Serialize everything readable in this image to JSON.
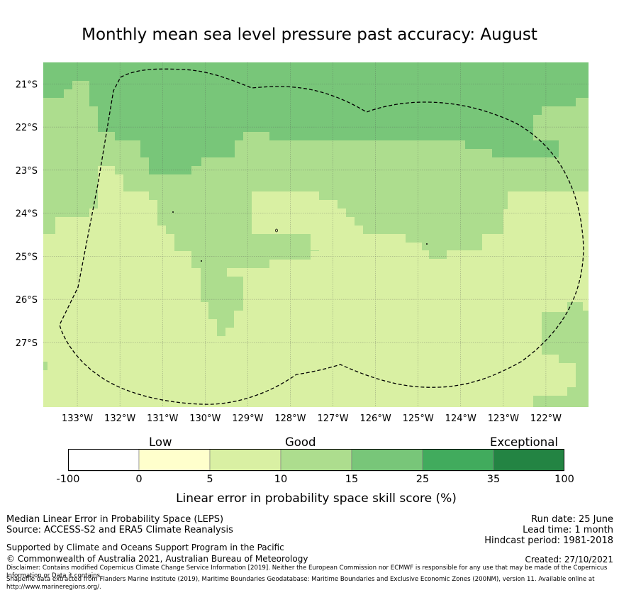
{
  "title": "Monthly mean sea level pressure past accuracy: August",
  "map": {
    "lat_labels": [
      "21°S",
      "22°S",
      "23°S",
      "24°S",
      "25°S",
      "26°S",
      "27°S"
    ],
    "lon_labels": [
      "133°W",
      "132°W",
      "131°W",
      "130°W",
      "129°W",
      "128°W",
      "127°W",
      "126°W",
      "125°W",
      "124°W",
      "123°W",
      "122°W"
    ],
    "lon_range": [
      -133.8,
      -121.0
    ],
    "lat_range": [
      -28.5,
      -20.5
    ],
    "region_boundary": "dashed black outline (Pitcairn Islands EEZ)",
    "field": "LEPS skill score shaded by category"
  },
  "colorbar": {
    "categories": [
      "Low",
      "Good",
      "Exceptional"
    ],
    "ticks": [
      "-100",
      "0",
      "5",
      "10",
      "15",
      "25",
      "35",
      "100"
    ],
    "colors": [
      "#ffffff",
      "#ffffcc",
      "#d9f0a3",
      "#addd8e",
      "#78c679",
      "#41ab5d",
      "#238443"
    ],
    "label": "Linear error in probability space skill score (%)"
  },
  "footer": {
    "method": "Median Linear Error in Probability Space (LEPS)",
    "source": "Source: ACCESS-S2 and ERA5 Climate Reanalysis",
    "run_date": "Run date: 25 June",
    "lead_time": "Lead time: 1 month",
    "hindcast": "Hindcast period: 1981-2018",
    "support": "Supported by Climate and Oceans Support Program in the Pacific",
    "copyright": "© Commonwealth of Australia 2021, Australian Bureau of Meteorology",
    "created": "Created: 27/10/2021",
    "disclaimer": "Disclaimer: Contains modified Copernicus Climate Change Service Information [2019]. Neither the European Commission nor ECMWF is responsible for any use that may be made of the Copernicus Information or Data it contains.",
    "shapefile": "Shapefile data extracted from Flanders Marine Institute (2019), Maritime Boundaries Geodatabase: Maritime Boundaries and Exclusive Economic Zones (200NM), version 11. Available online at http://www.marineregions.org/."
  }
}
